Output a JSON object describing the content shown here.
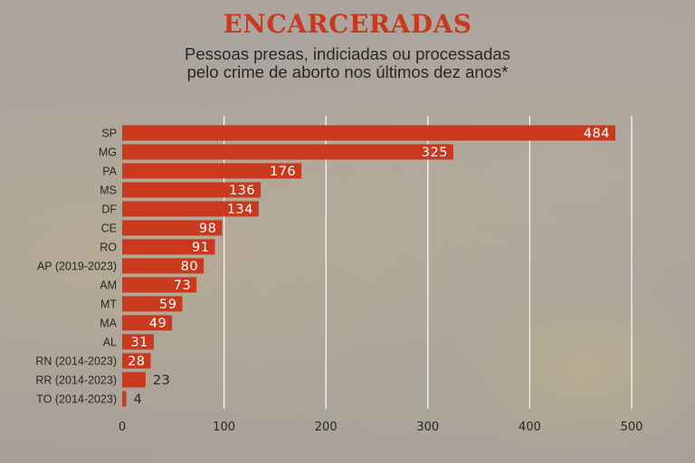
{
  "header": {
    "title": "ENCARCERADAS",
    "subtitle_line1": "Pessoas presas, indiciadas ou processadas",
    "subtitle_line2": "pelo crime de aborto nos últimos dez anos*"
  },
  "colors": {
    "bar": "#c8391e",
    "gridline": "#ffffff",
    "label_text": "#ffffff",
    "axis_text": "#2c2624"
  },
  "chart_data": {
    "type": "bar",
    "orientation": "horizontal",
    "title": "ENCARCERADAS",
    "subtitle": "Pessoas presas, indiciadas ou processadas pelo crime de aborto nos últimos dez anos*",
    "categories": [
      "SP",
      "MG",
      "PA",
      "MS",
      "DF",
      "CE",
      "RO",
      "AP (2019-2023)",
      "AM",
      "MT",
      "MA",
      "AL",
      "RN (2014-2023)",
      "RR (2014-2023)",
      "TO (2014-2023)"
    ],
    "values": [
      484,
      325,
      176,
      136,
      134,
      98,
      91,
      80,
      73,
      59,
      49,
      31,
      28,
      23,
      4
    ],
    "xlim": [
      0,
      500
    ],
    "xticks": [
      0,
      100,
      200,
      300,
      400,
      500
    ],
    "grid": true,
    "xlabel": "",
    "ylabel": ""
  }
}
